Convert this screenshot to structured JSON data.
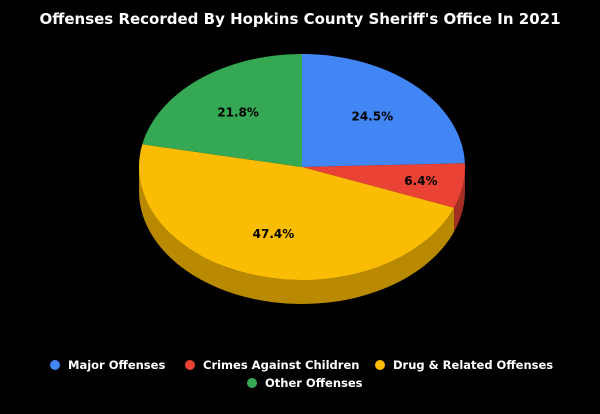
{
  "chart_data": {
    "type": "pie",
    "title": "Offenses Recorded By Hopkins County Sheriff's Office In 2021",
    "categories": [
      "Major Offenses",
      "Crimes Against Children",
      "Drug & Related Offenses",
      "Other Offenses"
    ],
    "values": [
      24.5,
      6.4,
      47.4,
      21.8
    ],
    "labels": [
      "24.5%",
      "6.4%",
      "47.4%",
      "21.8%"
    ],
    "value_unit": "%",
    "style": "3d",
    "legend_position": "bottom"
  },
  "colors": {
    "background": "#000000",
    "title_text": "#ffffff",
    "label_text": "#000000",
    "legend_text": "#ffffff",
    "slices": [
      "#4285f4",
      "#ea4335",
      "#fbbc04",
      "#34a853"
    ],
    "slices_side": [
      "#2a5db0",
      "#a52e24",
      "#b98a00",
      "#237538"
    ]
  }
}
